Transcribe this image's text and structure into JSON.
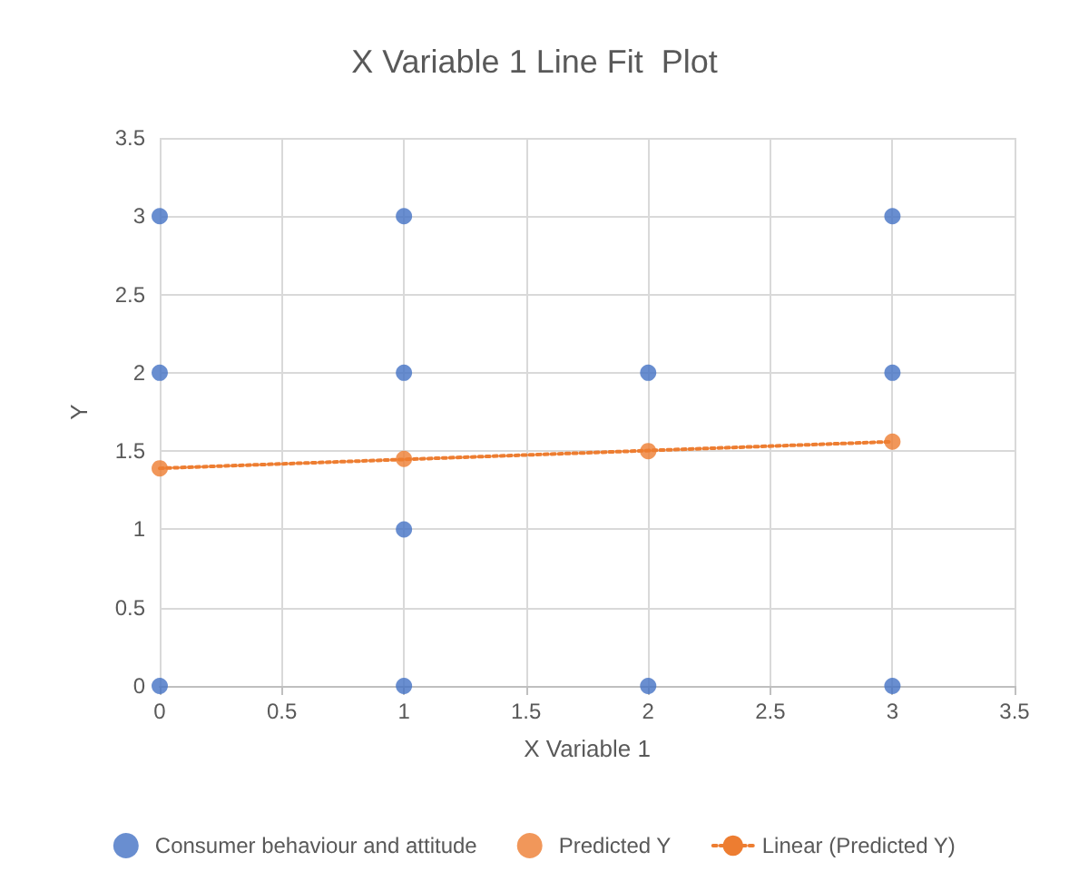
{
  "chart_data": {
    "type": "scatter",
    "title": "X Variable 1 Line Fit  Plot",
    "xlabel": "X Variable 1",
    "ylabel": "Y",
    "xlim": [
      0,
      3.5
    ],
    "xticks": [
      0,
      0.5,
      1,
      1.5,
      2,
      2.5,
      3,
      3.5
    ],
    "ylim": [
      0,
      3.5
    ],
    "yticks": [
      0,
      0.5,
      1,
      1.5,
      2,
      2.5,
      3,
      3.5
    ],
    "grid": true,
    "legend": "bottom",
    "marker": "circle",
    "series": [
      {
        "name": "Consumer behaviour and attitude",
        "color": "#4472c4",
        "x": [
          0,
          0,
          0,
          1,
          1,
          1,
          1,
          2,
          2,
          3,
          3,
          3
        ],
        "values": [
          3,
          2,
          0,
          3,
          2,
          1,
          0,
          2,
          0,
          3,
          2,
          0
        ]
      },
      {
        "name": "Predicted Y",
        "color": "#ed7d31",
        "x": [
          0,
          1,
          2,
          3
        ],
        "values": [
          1.39,
          1.45,
          1.5,
          1.56
        ]
      },
      {
        "name": "Linear (Predicted Y)",
        "type": "line",
        "color": "#ed7d31",
        "line_style": "dotted",
        "marker": "none",
        "x": [
          0,
          3
        ],
        "values": [
          1.39,
          1.56
        ]
      }
    ]
  }
}
